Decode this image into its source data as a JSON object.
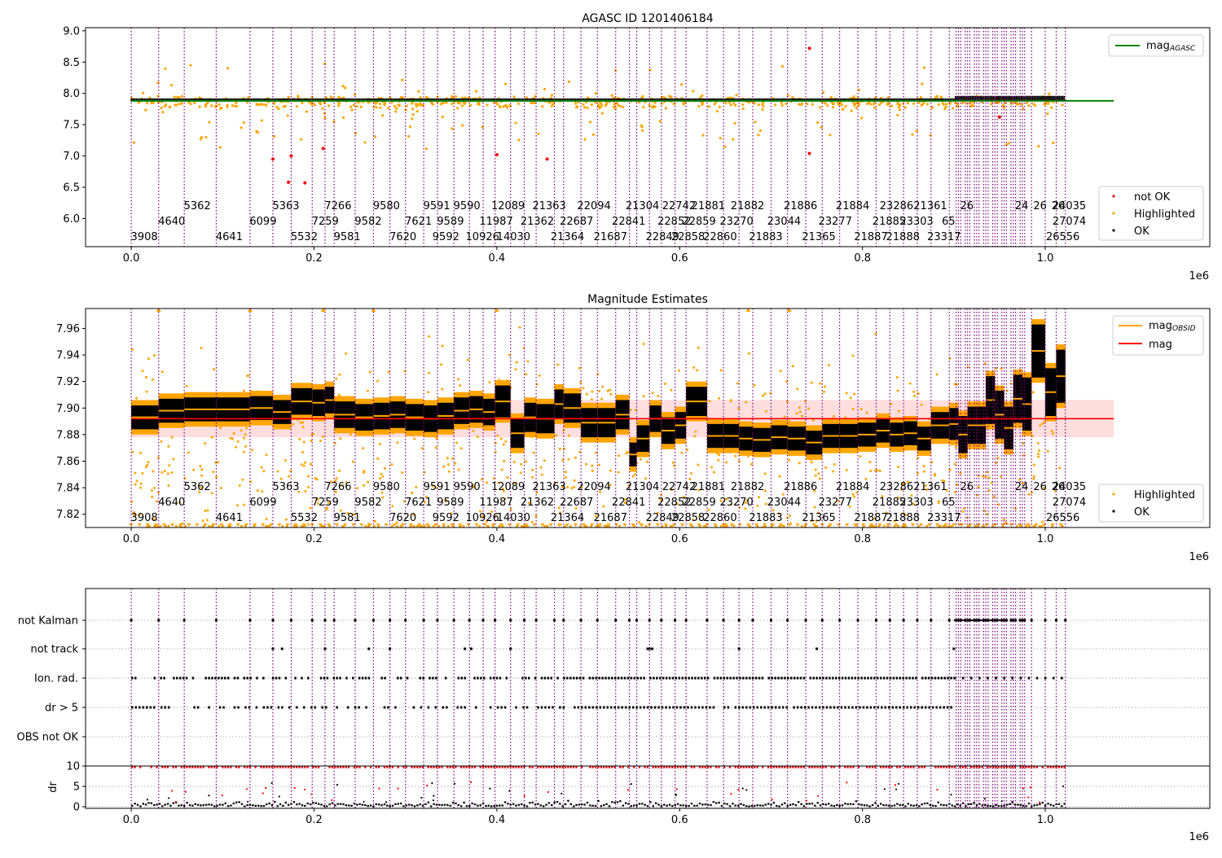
{
  "chart_data": [
    {
      "type": "scatter",
      "title": "AGASC ID 1201406184",
      "xlabel": "",
      "ylabel": "",
      "x_exponent_label": "1e6",
      "xlim": [
        -50000,
        1180000
      ],
      "ylim": [
        5.55,
        9.05
      ],
      "x_ticks": [
        0.0,
        0.2,
        0.4,
        0.6,
        0.8,
        1.0
      ],
      "x_tick_labels": [
        "0.0",
        "0.2",
        "0.4",
        "0.6",
        "0.8",
        "1.0"
      ],
      "y_ticks": [
        6.0,
        6.5,
        7.0,
        7.5,
        8.0,
        8.5,
        9.0
      ],
      "y_tick_labels": [
        "6.0",
        "6.5",
        "7.0",
        "7.5",
        "8.0",
        "8.5",
        "9.0"
      ],
      "legend_upper": {
        "position": "top-right",
        "entries": [
          {
            "label": "mag",
            "sub": "AGASC",
            "color": "#008000"
          }
        ]
      },
      "legend_lower": {
        "position": "bottom-right",
        "entries": [
          {
            "label": "not OK",
            "color": "#ff0000"
          },
          {
            "label": "Highlighted",
            "color": "#ffa500"
          },
          {
            "label": "OK",
            "color": "#000000"
          }
        ]
      },
      "series": [
        {
          "name": "mag_AGASC",
          "kind": "hline",
          "y": 7.88,
          "x_range": [
            0,
            1075000
          ],
          "color": "#008000"
        },
        {
          "name": "OK",
          "kind": "band",
          "center": 7.89,
          "halfwidth": 0.03,
          "color": "#000000"
        },
        {
          "name": "not OK",
          "kind": "points",
          "color": "#ff0000",
          "points": [
            [
              155000,
              6.95
            ],
            [
              172000,
              6.58
            ],
            [
              175000,
              7.0
            ],
            [
              190000,
              6.57
            ],
            [
              210000,
              7.12
            ],
            [
              400000,
              7.02
            ],
            [
              455000,
              6.95
            ],
            [
              742000,
              8.72
            ],
            [
              742000,
              7.04
            ],
            [
              950000,
              7.62
            ]
          ]
        }
      ]
    },
    {
      "type": "scatter",
      "title": "Magnitude Estimates",
      "xlabel": "",
      "ylabel": "",
      "x_exponent_label": "1e6",
      "xlim": [
        -50000,
        1180000
      ],
      "ylim": [
        7.81,
        7.975
      ],
      "x_ticks": [
        0.0,
        0.2,
        0.4,
        0.6,
        0.8,
        1.0
      ],
      "x_tick_labels": [
        "0.0",
        "0.2",
        "0.4",
        "0.6",
        "0.8",
        "1.0"
      ],
      "y_ticks": [
        7.82,
        7.84,
        7.86,
        7.88,
        7.9,
        7.92,
        7.94,
        7.96
      ],
      "y_tick_labels": [
        "7.82",
        "7.84",
        "7.86",
        "7.88",
        "7.90",
        "7.92",
        "7.94",
        "7.96"
      ],
      "legend_upper": {
        "position": "top-right",
        "entries": [
          {
            "label": "mag",
            "sub": "OBSID",
            "color": "#ffa500"
          },
          {
            "label": "mag",
            "sub": "",
            "color": "#ff0000"
          }
        ]
      },
      "legend_lower": {
        "position": "bottom-right",
        "entries": [
          {
            "label": "Highlighted",
            "color": "#ffa500"
          },
          {
            "label": "OK",
            "color": "#000000"
          }
        ]
      },
      "mag_line": {
        "y": 7.892,
        "band": [
          7.878,
          7.906
        ],
        "x_range": [
          0,
          1075000
        ]
      },
      "obsid_segments": [
        [
          0,
          30000,
          7.893,
          0.009
        ],
        [
          30000,
          58000,
          7.898,
          0.009
        ],
        [
          58000,
          93000,
          7.899,
          0.009
        ],
        [
          93000,
          130000,
          7.899,
          0.009
        ],
        [
          130000,
          155000,
          7.9,
          0.009
        ],
        [
          155000,
          175000,
          7.897,
          0.009
        ],
        [
          175000,
          198000,
          7.905,
          0.01
        ],
        [
          198000,
          212000,
          7.904,
          0.01
        ],
        [
          212000,
          222000,
          7.906,
          0.01
        ],
        [
          222000,
          245000,
          7.895,
          0.01
        ],
        [
          245000,
          265000,
          7.893,
          0.01
        ],
        [
          265000,
          283000,
          7.894,
          0.01
        ],
        [
          283000,
          300000,
          7.895,
          0.01
        ],
        [
          300000,
          320000,
          7.893,
          0.01
        ],
        [
          320000,
          335000,
          7.892,
          0.01
        ],
        [
          335000,
          353000,
          7.894,
          0.01
        ],
        [
          353000,
          370000,
          7.898,
          0.01
        ],
        [
          370000,
          385000,
          7.899,
          0.01
        ],
        [
          385000,
          398000,
          7.897,
          0.01
        ],
        [
          398000,
          415000,
          7.905,
          0.012
        ],
        [
          415000,
          430000,
          7.881,
          0.011
        ],
        [
          430000,
          443000,
          7.893,
          0.011
        ],
        [
          443000,
          463000,
          7.892,
          0.011
        ],
        [
          463000,
          473000,
          7.903,
          0.011
        ],
        [
          473000,
          492000,
          7.9,
          0.011
        ],
        [
          492000,
          510000,
          7.889,
          0.011
        ],
        [
          510000,
          530000,
          7.889,
          0.011
        ],
        [
          530000,
          545000,
          7.895,
          0.011
        ],
        [
          545000,
          553000,
          7.865,
          0.009
        ],
        [
          553000,
          567000,
          7.877,
          0.01
        ],
        [
          567000,
          580000,
          7.892,
          0.01
        ],
        [
          580000,
          595000,
          7.883,
          0.01
        ],
        [
          595000,
          607000,
          7.887,
          0.01
        ],
        [
          607000,
          630000,
          7.905,
          0.011
        ],
        [
          630000,
          648000,
          7.879,
          0.009
        ],
        [
          648000,
          665000,
          7.879,
          0.009
        ],
        [
          665000,
          680000,
          7.877,
          0.009
        ],
        [
          680000,
          700000,
          7.876,
          0.009
        ],
        [
          700000,
          718000,
          7.878,
          0.009
        ],
        [
          718000,
          738000,
          7.877,
          0.009
        ],
        [
          738000,
          756000,
          7.874,
          0.009
        ],
        [
          756000,
          775000,
          7.879,
          0.009
        ],
        [
          775000,
          795000,
          7.879,
          0.009
        ],
        [
          795000,
          815000,
          7.88,
          0.009
        ],
        [
          815000,
          830000,
          7.883,
          0.009
        ],
        [
          830000,
          845000,
          7.88,
          0.009
        ],
        [
          845000,
          860000,
          7.881,
          0.009
        ],
        [
          860000,
          875000,
          7.877,
          0.009
        ],
        [
          875000,
          895000,
          7.887,
          0.01
        ],
        [
          895000,
          905000,
          7.888,
          0.012
        ],
        [
          905000,
          915000,
          7.88,
          0.014
        ],
        [
          915000,
          925000,
          7.887,
          0.014
        ],
        [
          925000,
          935000,
          7.887,
          0.014
        ],
        [
          935000,
          945000,
          7.906,
          0.018
        ],
        [
          945000,
          955000,
          7.895,
          0.018
        ],
        [
          955000,
          965000,
          7.885,
          0.016
        ],
        [
          965000,
          975000,
          7.907,
          0.018
        ],
        [
          975000,
          985000,
          7.903,
          0.02
        ],
        [
          985000,
          1000000,
          7.943,
          0.02
        ],
        [
          1000000,
          1012000,
          7.912,
          0.018
        ],
        [
          1012000,
          1022000,
          7.924,
          0.02
        ]
      ]
    },
    {
      "type": "scatter",
      "title": "",
      "xlabel": "",
      "x_exponent_label": "1e6",
      "xlim": [
        -50000,
        1180000
      ],
      "x_ticks": [
        0.0,
        0.2,
        0.4,
        0.6,
        0.8,
        1.0
      ],
      "x_tick_labels": [
        "0.0",
        "0.2",
        "0.4",
        "0.6",
        "0.8",
        "1.0"
      ],
      "flag_rows": [
        "not Kalman",
        "not track",
        "Ion. rad.",
        "dr > 5",
        "OBS not OK"
      ],
      "dr_panel": {
        "ylabel": "dr",
        "ylim": [
          0,
          10
        ],
        "y_ticks": [
          0,
          5,
          10
        ],
        "y_tick_labels": [
          "0",
          "5",
          "10"
        ]
      }
    }
  ],
  "obsid_labels": [
    {
      "x": 0,
      "text": "3908",
      "row": 0
    },
    {
      "x": 30000,
      "text": "4640",
      "row": 1
    },
    {
      "x": 58000,
      "text": "5362",
      "row": 2
    },
    {
      "x": 93000,
      "text": "4641",
      "row": 0
    },
    {
      "x": 130000,
      "text": "6099",
      "row": 1
    },
    {
      "x": 155000,
      "text": "5363",
      "row": 2
    },
    {
      "x": 175000,
      "text": "5532",
      "row": 0
    },
    {
      "x": 198000,
      "text": "7259",
      "row": 1
    },
    {
      "x": 212000,
      "text": "7266",
      "row": 2
    },
    {
      "x": 222000,
      "text": "9581",
      "row": 0
    },
    {
      "x": 245000,
      "text": "9582",
      "row": 1
    },
    {
      "x": 265000,
      "text": "9580",
      "row": 2
    },
    {
      "x": 283000,
      "text": "7620",
      "row": 0
    },
    {
      "x": 300000,
      "text": "7621",
      "row": 1
    },
    {
      "x": 320000,
      "text": "9591",
      "row": 2
    },
    {
      "x": 330000,
      "text": "9592",
      "row": 0
    },
    {
      "x": 335000,
      "text": "9589",
      "row": 1
    },
    {
      "x": 353000,
      "text": "9590",
      "row": 2
    },
    {
      "x": 370000,
      "text": "10926",
      "row": 0
    },
    {
      "x": 385000,
      "text": "11987",
      "row": 1
    },
    {
      "x": 398000,
      "text": "12089",
      "row": 2
    },
    {
      "x": 404000,
      "text": "14030",
      "row": 0
    },
    {
      "x": 430000,
      "text": "21362",
      "row": 1
    },
    {
      "x": 443000,
      "text": "21363",
      "row": 2
    },
    {
      "x": 463000,
      "text": "21364",
      "row": 0
    },
    {
      "x": 473000,
      "text": "22687",
      "row": 1
    },
    {
      "x": 492000,
      "text": "22094",
      "row": 2
    },
    {
      "x": 510000,
      "text": "21687",
      "row": 0
    },
    {
      "x": 530000,
      "text": "22841",
      "row": 1
    },
    {
      "x": 545000,
      "text": "21304",
      "row": 2
    },
    {
      "x": 567000,
      "text": "22849",
      "row": 0
    },
    {
      "x": 580000,
      "text": "22852",
      "row": 1
    },
    {
      "x": 585000,
      "text": "22742",
      "row": 2
    },
    {
      "x": 595000,
      "text": "22858",
      "row": 0
    },
    {
      "x": 607000,
      "text": "22859",
      "row": 1
    },
    {
      "x": 617000,
      "text": "21881",
      "row": 2
    },
    {
      "x": 630000,
      "text": "22860",
      "row": 0
    },
    {
      "x": 648000,
      "text": "23270",
      "row": 1
    },
    {
      "x": 660000,
      "text": "21882",
      "row": 2
    },
    {
      "x": 680000,
      "text": "21883",
      "row": 0
    },
    {
      "x": 700000,
      "text": "23044",
      "row": 1
    },
    {
      "x": 718000,
      "text": "21886",
      "row": 2
    },
    {
      "x": 738000,
      "text": "21365",
      "row": 0
    },
    {
      "x": 756000,
      "text": "23277",
      "row": 1
    },
    {
      "x": 775000,
      "text": "21884",
      "row": 2
    },
    {
      "x": 795000,
      "text": "21887",
      "row": 0
    },
    {
      "x": 815000,
      "text": "21885",
      "row": 1
    },
    {
      "x": 823000,
      "text": "23286",
      "row": 2
    },
    {
      "x": 830000,
      "text": "21888",
      "row": 0
    },
    {
      "x": 845000,
      "text": "23303",
      "row": 1
    },
    {
      "x": 860000,
      "text": "21361",
      "row": 2
    },
    {
      "x": 875000,
      "text": "23317",
      "row": 0
    },
    {
      "x": 880000,
      "text": "65",
      "row": 1
    },
    {
      "x": 900000,
      "text": "26",
      "row": 2
    },
    {
      "x": 960000,
      "text": "24",
      "row": 2
    },
    {
      "x": 980000,
      "text": "26",
      "row": 2
    },
    {
      "x": 1000000,
      "text": "26",
      "row": 2
    },
    {
      "x": 1012000,
      "text": "24035",
      "row": 2
    },
    {
      "x": 1012000,
      "text": "27074",
      "row": 1
    },
    {
      "x": 1005000,
      "text": "26556",
      "row": 0
    }
  ]
}
